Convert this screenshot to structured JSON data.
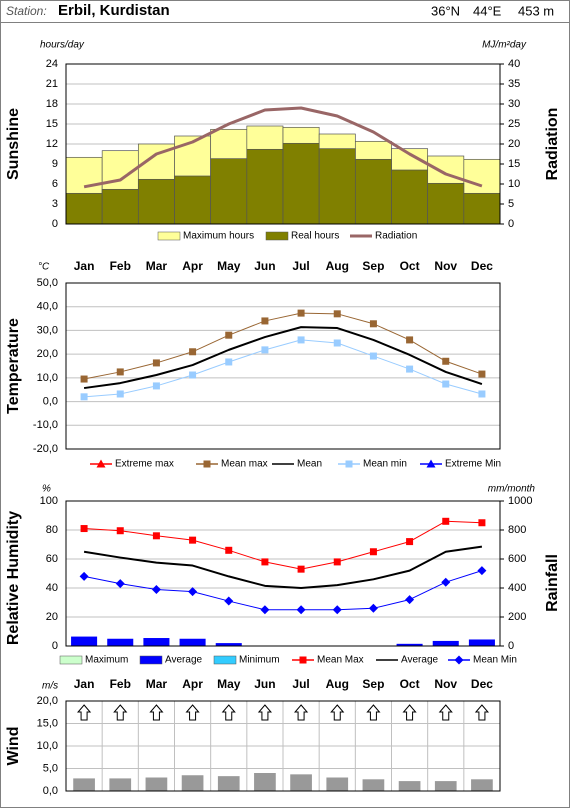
{
  "header": {
    "station_label": "Station:",
    "station": "Erbil, Kurdistan",
    "latitude": "36°N",
    "longitude": "44°E",
    "elevation": "453 m"
  },
  "chart_data": [
    {
      "type": "bar",
      "ylabel": "Sunshine",
      "y2label": "Radiation",
      "yunit": "hours/day",
      "y2unit": "MJ/m²day",
      "ylim": [
        0,
        24
      ],
      "yticks": [
        0,
        3,
        6,
        9,
        12,
        15,
        18,
        21,
        24
      ],
      "y2lim": [
        0,
        40
      ],
      "y2ticks": [
        0,
        5,
        10,
        15,
        20,
        25,
        30,
        35,
        40
      ],
      "grid": true,
      "series": [
        {
          "name": "Maximum hours",
          "type": "bar",
          "color": "#ffff99",
          "values": [
            10,
            11,
            12,
            13.2,
            14.2,
            14.7,
            14.5,
            13.5,
            12.4,
            11.3,
            10.2,
            9.7
          ]
        },
        {
          "name": "Real hours",
          "type": "bar",
          "color": "#808000",
          "values": [
            4.6,
            5.2,
            6.7,
            7.2,
            9.8,
            11.2,
            12.1,
            11.3,
            9.7,
            8.1,
            6.1,
            4.6
          ]
        },
        {
          "name": "Radiation",
          "type": "line",
          "axis": "y2",
          "color": "#996666",
          "values": [
            9.3,
            11,
            17.5,
            20.5,
            25,
            28.5,
            29,
            27,
            23,
            17.5,
            12.5,
            9.5
          ]
        }
      ]
    },
    {
      "type": "line",
      "ylabel": "Temperature",
      "yunit": "°C",
      "categories": [
        "Jan",
        "Feb",
        "Mar",
        "Apr",
        "May",
        "Jun",
        "Jul",
        "Aug",
        "Sep",
        "Oct",
        "Nov",
        "Dec"
      ],
      "ylim": [
        -20,
        50
      ],
      "yticks": [
        {
          "value": -20,
          "label": "-20,0"
        },
        {
          "value": -10,
          "label": "-10,0"
        },
        {
          "value": 0,
          "label": "0,0"
        },
        {
          "value": 10,
          "label": "10,0"
        },
        {
          "value": 20,
          "label": "20,0"
        },
        {
          "value": 30,
          "label": "30,0"
        },
        {
          "value": 40,
          "label": "40,0"
        },
        {
          "value": 50,
          "label": "50,0"
        }
      ],
      "grid": true,
      "series": [
        {
          "name": "Extreme max",
          "type": "line",
          "marker": "triangle",
          "color": "#ff0000",
          "values": [
            null,
            null,
            null,
            null,
            null,
            null,
            null,
            null,
            null,
            null,
            null,
            null
          ]
        },
        {
          "name": "Mean max",
          "type": "line",
          "marker": "square",
          "color": "#996633",
          "values": [
            9.5,
            12.5,
            16.3,
            21,
            28,
            34,
            37.3,
            37,
            32.8,
            26,
            17,
            11.6
          ]
        },
        {
          "name": "Mean",
          "type": "line",
          "marker": "none",
          "color": "#000000",
          "values": [
            5.7,
            7.8,
            11.2,
            15.4,
            21.8,
            27.2,
            31.4,
            31,
            26,
            19.7,
            12.5,
            7.4
          ]
        },
        {
          "name": "Mean min",
          "type": "line",
          "marker": "square",
          "color": "#99ccff",
          "values": [
            2,
            3.2,
            6.6,
            11.2,
            16.7,
            21.8,
            26,
            24.7,
            19.2,
            13.7,
            7.4,
            3.2
          ]
        },
        {
          "name": "Extreme Min",
          "type": "line",
          "marker": "triangle",
          "color": "#0000ff",
          "values": [
            null,
            null,
            null,
            null,
            null,
            null,
            null,
            null,
            null,
            null,
            null,
            null
          ]
        }
      ]
    },
    {
      "type": "line",
      "ylabel": "Relative Humidity",
      "y2label": "Rainfall",
      "yunit": "%",
      "y2unit": "mm/month",
      "ylim": [
        0,
        100
      ],
      "yticks": [
        0,
        20,
        40,
        60,
        80,
        100
      ],
      "y2lim": [
        0,
        1000
      ],
      "y2ticks": [
        0,
        200,
        400,
        600,
        800,
        1000
      ],
      "grid": true,
      "series": [
        {
          "name": "Maximum",
          "type": "bar",
          "axis": "y2",
          "color": "#ccffcc",
          "values": [
            null,
            null,
            null,
            null,
            null,
            null,
            null,
            null,
            null,
            null,
            null,
            null
          ]
        },
        {
          "name": "Average",
          "type": "bar",
          "axis": "y2",
          "color": "#0000ff",
          "values": [
            65,
            50,
            55,
            50,
            20,
            0,
            0,
            0,
            0,
            15,
            35,
            45
          ]
        },
        {
          "name": "Minimum",
          "type": "bar",
          "axis": "y2",
          "color": "#33ccff",
          "values": [
            null,
            null,
            null,
            null,
            null,
            null,
            null,
            null,
            null,
            null,
            null,
            null
          ]
        },
        {
          "name": "Mean Max",
          "type": "line",
          "marker": "square",
          "color": "#ff0000",
          "values": [
            81,
            79.5,
            76,
            73,
            66,
            58,
            53,
            58,
            65,
            72,
            86,
            85
          ]
        },
        {
          "name": "Average",
          "type": "line",
          "marker": "none",
          "color": "#000000",
          "values": [
            65,
            61,
            57.5,
            55.5,
            48,
            41.5,
            40,
            42,
            46,
            52,
            65,
            68.5
          ]
        },
        {
          "name": "Mean Min",
          "type": "line",
          "marker": "diamond",
          "color": "#0000ff",
          "values": [
            48,
            43,
            39,
            37.5,
            31,
            25,
            25,
            25,
            26,
            32,
            44,
            52
          ]
        }
      ]
    },
    {
      "type": "bar",
      "ylabel": "Wind",
      "yunit": "m/s",
      "categories": [
        "Jan",
        "Feb",
        "Mar",
        "Apr",
        "May",
        "Jun",
        "Jul",
        "Aug",
        "Sep",
        "Oct",
        "Nov",
        "Dec"
      ],
      "ylim": [
        0,
        20
      ],
      "yticks": [
        {
          "value": 0,
          "label": "0,0"
        },
        {
          "value": 5,
          "label": "5,0"
        },
        {
          "value": 10,
          "label": "10,0"
        },
        {
          "value": 15,
          "label": "15,0"
        },
        {
          "value": 20,
          "label": "20,0"
        }
      ],
      "grid": true,
      "series": [
        {
          "type": "bar",
          "color": "#999999",
          "values": [
            2.8,
            2.8,
            3,
            3.5,
            3.3,
            4,
            3.7,
            3,
            2.6,
            2.2,
            2.2,
            2.6
          ]
        }
      ]
    }
  ]
}
